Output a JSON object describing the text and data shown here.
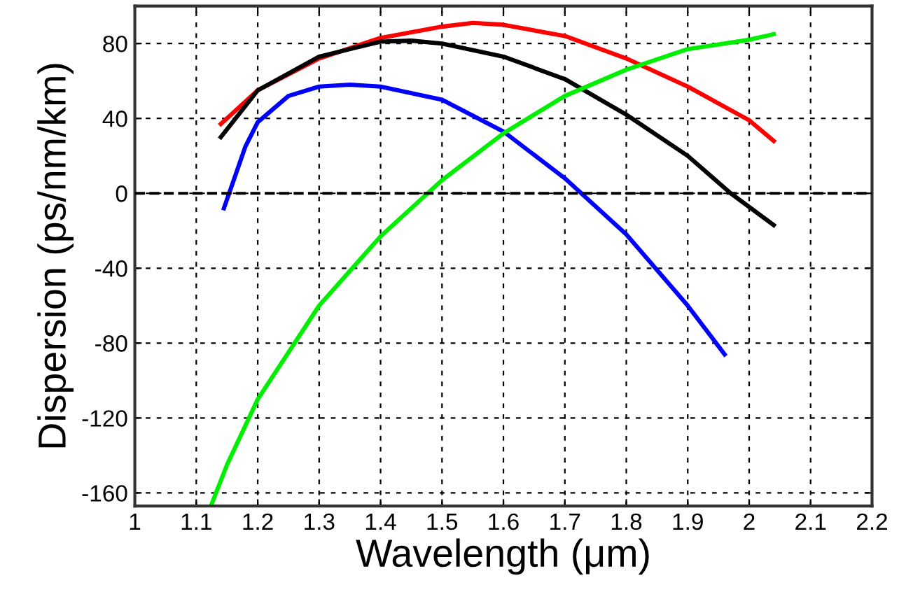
{
  "chart_data": {
    "type": "line",
    "xlabel": "Wavelength (μm)",
    "ylabel": "Dispersion (ps/nm/km)",
    "xlim": [
      1,
      2.2
    ],
    "ylim": [
      -167,
      100
    ],
    "xticks": [
      1,
      1.1,
      1.2,
      1.3,
      1.4,
      1.5,
      1.6,
      1.7,
      1.8,
      1.9,
      2,
      2.1,
      2.2
    ],
    "yticks": [
      -160,
      -120,
      -80,
      -40,
      0,
      40,
      80
    ],
    "grid": true,
    "legend": false,
    "line_style": "solid",
    "marker": "none",
    "ref_lines": [
      {
        "axis": "y",
        "value": 0,
        "color": "#000000",
        "line_style": "dashed"
      }
    ],
    "series": [
      {
        "color": "#ff0000",
        "x": [
          1.14,
          1.2,
          1.3,
          1.4,
          1.5,
          1.55,
          1.6,
          1.7,
          1.8,
          1.9,
          2.0,
          2.04
        ],
        "values": [
          37,
          55,
          72,
          83,
          89,
          91,
          90,
          84,
          72,
          57,
          39,
          28
        ]
      },
      {
        "color": "#000000",
        "x": [
          1.14,
          1.2,
          1.3,
          1.4,
          1.45,
          1.5,
          1.6,
          1.7,
          1.8,
          1.9,
          1.97,
          2.04
        ],
        "values": [
          30,
          55,
          73,
          81,
          81.5,
          80,
          73,
          61,
          42,
          20,
          0,
          -17
        ]
      },
      {
        "color": "#0000ff",
        "x": [
          1.145,
          1.18,
          1.2,
          1.25,
          1.3,
          1.35,
          1.4,
          1.5,
          1.6,
          1.7,
          1.8,
          1.9,
          1.96
        ],
        "values": [
          -8,
          25,
          38,
          52,
          57,
          58,
          57,
          50,
          33,
          8,
          -22,
          -60,
          -86
        ]
      },
      {
        "color": "#00ee00",
        "x": [
          1.125,
          1.15,
          1.2,
          1.3,
          1.4,
          1.5,
          1.6,
          1.7,
          1.8,
          1.9,
          2.0,
          2.04
        ],
        "values": [
          -166,
          -145,
          -110,
          -60,
          -23,
          7,
          32,
          52,
          66,
          77,
          82,
          85
        ]
      }
    ]
  }
}
